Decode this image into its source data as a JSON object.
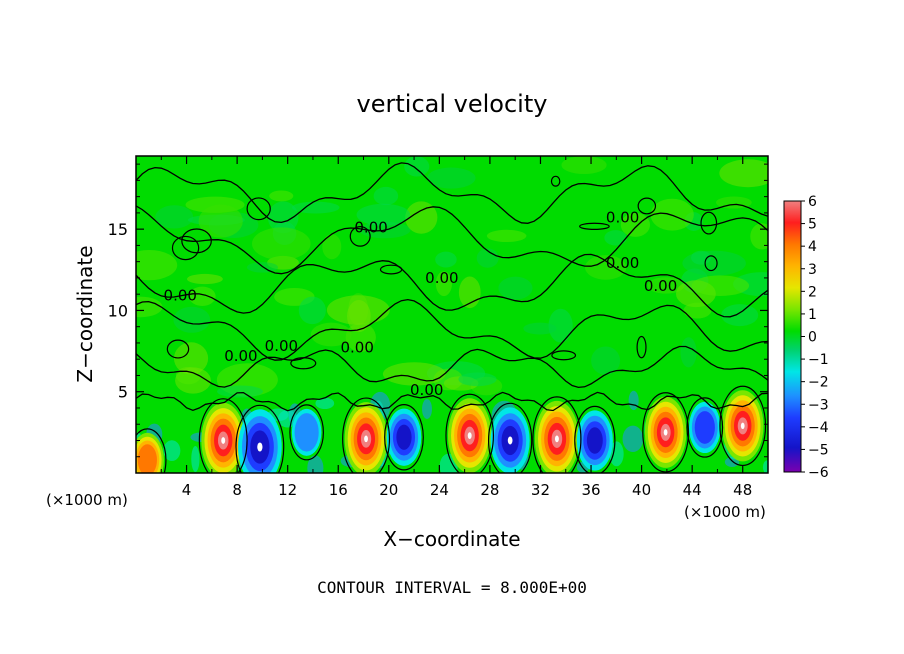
{
  "chart_data": {
    "type": "heatmap",
    "title": "vertical velocity",
    "xlabel": "X−coordinate",
    "ylabel": "Z−coordinate",
    "x_unit": "(×1000 m)",
    "x_unit_right": "(×1000 m)",
    "footer": "CONTOUR INTERVAL = 8.000E+00",
    "xlim": [
      0,
      50
    ],
    "ylim": [
      0,
      19.5
    ],
    "x_ticks": [
      4,
      8,
      12,
      16,
      20,
      24,
      28,
      32,
      36,
      40,
      44,
      48
    ],
    "x_tick_labels": [
      "4",
      "8",
      "12",
      "16",
      "20",
      "24",
      "28",
      "32",
      "36",
      "40",
      "44",
      "48"
    ],
    "y_ticks": [
      5,
      10,
      15
    ],
    "y_tick_labels": [
      "5",
      "10",
      "15"
    ],
    "colorbar": {
      "ticks": [
        6,
        5,
        4,
        3,
        2,
        1,
        0,
        -1,
        -2,
        -3,
        -4,
        -5,
        -6
      ],
      "labels": [
        "6",
        "5",
        "4",
        "3",
        "2",
        "1",
        "0",
        "−1",
        "−2",
        "−3",
        "−4",
        "−5",
        "−6"
      ],
      "range": [
        -6,
        6
      ],
      "colors": [
        "#7a00b0",
        "#1414c8",
        "#1e3cff",
        "#1e90ff",
        "#00e6e6",
        "#00d26e",
        "#00dc00",
        "#7ae600",
        "#e6e600",
        "#ffb400",
        "#ff7800",
        "#ff1e1e",
        "#f08080"
      ]
    },
    "contour_labels": [
      {
        "text": "0.00",
        "x": 18.6,
        "z": 14.8
      },
      {
        "text": "0.00",
        "x": 24.2,
        "z": 11.7
      },
      {
        "text": "0.00",
        "x": 8.3,
        "z": 6.9
      },
      {
        "text": "0.00",
        "x": 11.5,
        "z": 7.5
      },
      {
        "text": "0.00",
        "x": 3.5,
        "z": 10.6
      },
      {
        "text": "0.00",
        "x": 17.5,
        "z": 7.4
      },
      {
        "text": "0.00",
        "x": 23.0,
        "z": 4.8
      },
      {
        "text": "0.00",
        "x": 38.5,
        "z": 12.6
      },
      {
        "text": "0.00",
        "x": 38.5,
        "z": 15.4
      },
      {
        "text": "0.00",
        "x": 41.5,
        "z": 11.2
      }
    ],
    "updraft_cores": [
      {
        "x": 0.9,
        "z": 0.8,
        "w": 3.0
      },
      {
        "x": 6.9,
        "z": 2.0,
        "w": 6.5
      },
      {
        "x": 9.8,
        "z": 1.6,
        "w": -6.5
      },
      {
        "x": 13.5,
        "z": 2.5,
        "w": -1.8
      },
      {
        "x": 18.2,
        "z": 2.1,
        "w": 6.2
      },
      {
        "x": 21.2,
        "z": 2.2,
        "w": -3.5
      },
      {
        "x": 26.4,
        "z": 2.3,
        "w": 6.4
      },
      {
        "x": 29.6,
        "z": 2.0,
        "w": -5.0
      },
      {
        "x": 33.3,
        "z": 2.1,
        "w": 6.6
      },
      {
        "x": 36.3,
        "z": 2.0,
        "w": -4.0
      },
      {
        "x": 41.9,
        "z": 2.5,
        "w": 5.8
      },
      {
        "x": 45.0,
        "z": 2.8,
        "w": -2.5
      },
      {
        "x": 48.0,
        "z": 2.9,
        "w": 5.8
      }
    ]
  }
}
